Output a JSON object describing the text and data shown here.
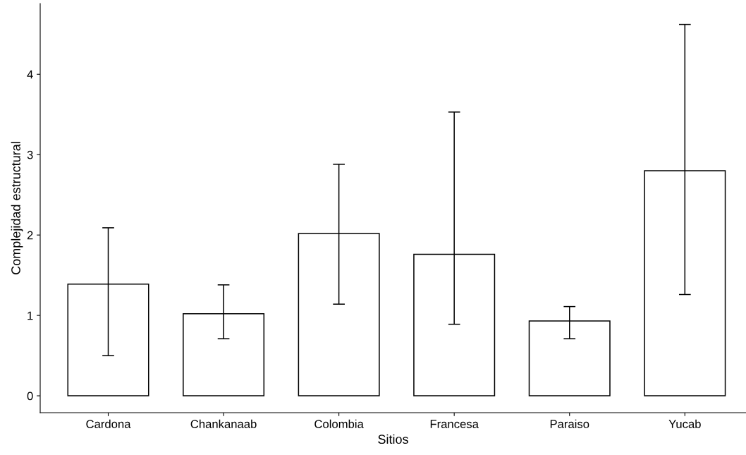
{
  "chart_data": {
    "type": "bar",
    "xlabel": "Sitios",
    "ylabel": "Complejidad estructural",
    "categories": [
      "Cardona",
      "Chankanaab",
      "Colombia",
      "Francesa",
      "Paraiso",
      "Yucab"
    ],
    "values": [
      1.39,
      1.02,
      2.02,
      1.76,
      0.93,
      2.8
    ],
    "errors": [
      [
        0.5,
        2.09
      ],
      [
        0.71,
        1.38
      ],
      [
        1.14,
        2.88
      ],
      [
        0.89,
        3.53
      ],
      [
        0.71,
        1.11
      ],
      [
        1.26,
        4.62
      ]
    ],
    "color": "#ffffff",
    "ylim": [
      -0.21,
      4.88
    ],
    "yticks": [
      0,
      1,
      2,
      3,
      4
    ],
    "grid": false,
    "legend": false
  }
}
